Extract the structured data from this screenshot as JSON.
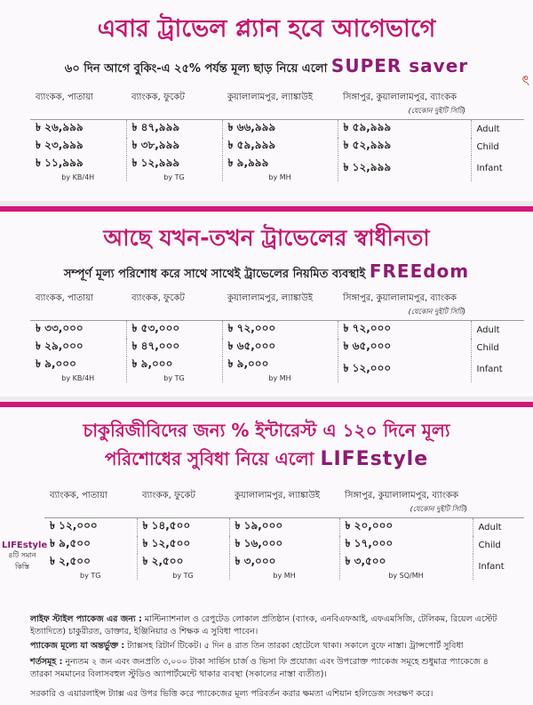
{
  "section1": {
    "title": "এবার ট্রাভেল প্ল্যান হবে আগেভাগে",
    "subtitle": "৬০ দিন আগে বুকিং-এ ২৫% পর্যন্ত মূল্য ছাড় নিয়ে এলো",
    "brand": "SUPER saver",
    "headers": [
      "ব্যাংকক, পাতায়া",
      "ব্যাংকক, ফুকেট",
      "কুয়ালালামপুর, ল্যাঙ্কাউই",
      "সিঙ্গাপুর, কুয়ালালামপুর, ব্যাংকক"
    ],
    "note": "(যেকোন দুইটি সিটি)",
    "rows": [
      {
        "pax": "Adult",
        "fares": [
          "৳ ২৬,৯৯৯",
          "৳ ৪৭,৯৯৯",
          "৳ ৬৬,৯৯৯",
          "৳ ৫৯,৯৯৯"
        ]
      },
      {
        "pax": "Child",
        "fares": [
          "৳ ২৩,৯৯৯",
          "৳ ৩৮,৯৯৯",
          "৳ ৫৯,৯৯৯",
          "৳ ৫২,৯৯৯"
        ]
      },
      {
        "pax": "Infant",
        "fares": [
          "৳ ১১,৯৯৯",
          "৳ ১২,৯৯৯",
          "৳ ৯,৯৯৯",
          "৳ ১২,৯৯৯"
        ]
      }
    ],
    "carriers": [
      "by KB/4H",
      "by TG",
      "by MH",
      ""
    ]
  },
  "section2": {
    "title": "আছে যখন-তখন ট্রাভেলের স্বাধীনতা",
    "subtitle": "সম্পূর্ণ মূল্য পরিশোধ করে সাথে সাথেই ট্রাভেলের নিয়মিত ব্যবস্থাই",
    "brand": "FREEdom",
    "headers": [
      "ব্যাংকক, পাতায়া",
      "ব্যাংকক, ফুকেট",
      "কুয়ালালামপুর, ল্যাঙ্কাউই",
      "সিঙ্গাপুর, কুয়ালালামপুর, ব্যাংকক"
    ],
    "note": "(যেকোন দুইটি সিটি)",
    "rows": [
      {
        "pax": "Adult",
        "fares": [
          "৳ ৩৩,০০০",
          "৳ ৫৩,০০০",
          "৳ ৭২,০০০",
          "৳ ৭২,০০০"
        ]
      },
      {
        "pax": "Child",
        "fares": [
          "৳ ২৯,০০০",
          "৳ ৪৭,০০০",
          "৳ ৬৫,০০০",
          "৳ ৬৫,০০০"
        ]
      },
      {
        "pax": "Infant",
        "fares": [
          "৳ ৯,০০০",
          "৳ ৯,০০০",
          "৳ ৯,০০০",
          "৳ ১২,০০০"
        ]
      }
    ],
    "carriers": [
      "by KB/4H",
      "by TG",
      "by MH",
      ""
    ]
  },
  "section3": {
    "title_line1": "চাকুরিজীবিদের জন্য % ইন্টারেস্ট এ ১২০ দিনে মূল্য",
    "title_line2": "পরিশোধের সুবিধা নিয়ে এলো",
    "brand": "LIFEstyle",
    "side_brand": "LIFEstyle",
    "side_text": "৪টি সমান কিস্তি",
    "headers": [
      "ব্যাংকক, পাতায়া",
      "ব্যাংকক, ফুকেট",
      "কুয়ালালামপুর, ল্যাঙ্কাউই",
      "সিঙ্গাপুর, কুয়ালালামপুর, ব্যাংকক"
    ],
    "note": "(যেকোন দুইটি সিটি)",
    "rows": [
      {
        "pax": "Adult",
        "fares": [
          "৳ ১২,০০০",
          "৳ ১৪,৫০০",
          "৳ ১৯,০০০",
          "৳ ২০,০০০"
        ]
      },
      {
        "pax": "Child",
        "fares": [
          "৳ ৯,৫০০",
          "৳ ১২,৫০০",
          "৳ ১৬,০০০",
          "৳ ১৭,০০০"
        ]
      },
      {
        "pax": "Infant",
        "fares": [
          "৳ ২,৫০০",
          "৳ ২,৫০০",
          "৳ ৩,০০০",
          "৳ ৩,৫০০"
        ]
      }
    ],
    "carriers": [
      "by TG",
      "by TG",
      "by MH",
      "by SQ/MH"
    ]
  },
  "footer": {
    "line1_label": "লাইফ স্টাইল প্যাকেজ এর জন্য :",
    "line1_text": "মাল্টিন্যাশনাল ও রেপুটেড লোকাল প্রতিষ্ঠান (ব্যাংক, এনবিএফআই, এফএমসিজি, টেলিকম, রিয়েল এস্টেট ইত্যাদিতে) চাকুরীরত, ডাক্তার, ইঞ্জিনিয়ার ও শিক্ষক এ সুবিধা পাবেন।",
    "line2_label": "প্যাকেজ মূল্যে যা অন্তর্ভুক্ত :",
    "line2_text": "ট্যাক্সসহ রিটার্ন টিকেট। ৫ দিন ৪ রাত তিন তারকা হোটেলে থাকা। সকালে বুফে নাস্তা। ট্রান্সপোর্ট সুবিধা",
    "line3_label": "শর্তসমূহ :",
    "line3_text": "নুন্যতম ২ জন এবং জনপ্রতি ৩,০০০ টাকা সার্ভিস চার্জ ও ভিসা ফি প্রযোজ্য এবং উপরোক্ত প্যাকেজ সমূহে শুধুমাত্র প্যাকেজে ৪ তারকা সমমানের বিলাসবহুল স্টুডিও অ্যাপার্টমেন্টে থাকার ব্যবস্থা (সকালের নাস্তা ব্যতীত)।",
    "line4_text": "সরকারি ও এয়ারলাইন্স ট্যাক্স এর উপর ভিত্তি করে প্যাকেজের মূল্য পরিবর্তন করার ক্ষমতা এশিয়ান হলিডেজ সংরক্ষণ করে।"
  }
}
